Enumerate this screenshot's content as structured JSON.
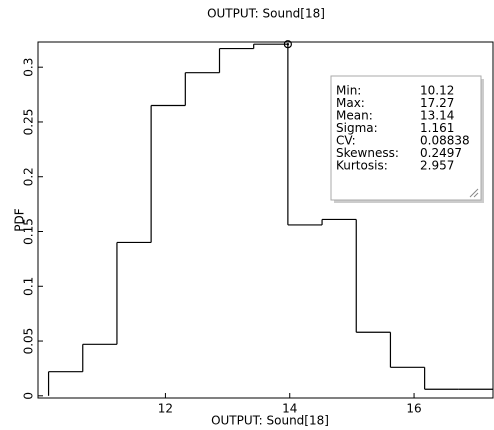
{
  "chart_data": {
    "type": "histogram",
    "title": "OUTPUT: Sound[18]",
    "x_label": "OUTPUT: Sound[18]",
    "y_label": "PDF",
    "bins": [
      10.12,
      10.67,
      11.22,
      11.77,
      12.32,
      12.87,
      13.42,
      13.97,
      14.52,
      15.07,
      15.62,
      16.17,
      16.72,
      17.27
    ],
    "values": [
      0.022,
      0.047,
      0.14,
      0.265,
      0.295,
      0.317,
      0.321,
      0.156,
      0.161,
      0.058,
      0.026,
      0.006,
      0.006
    ],
    "color": "#000000",
    "xlim": [
      9.95,
      17.27
    ],
    "ylim": [
      -0.002,
      0.323
    ],
    "xticks": [
      12,
      14,
      16
    ],
    "yticks": [
      0,
      0.05,
      0.1,
      0.15,
      0.2,
      0.25,
      0.3
    ],
    "highlight": {
      "x": 13.97,
      "y": 0.321
    },
    "stats": [
      {
        "label": "Min:",
        "value": 10.12
      },
      {
        "label": "Max:",
        "value": 17.27
      },
      {
        "label": "Mean:",
        "value": 13.14
      },
      {
        "label": "Sigma:",
        "value": 1.161
      },
      {
        "label": "CV:",
        "value": 0.08838
      },
      {
        "label": "Skewness:",
        "value": 0.2497
      },
      {
        "label": "Kurtosis:",
        "value": 2.957
      }
    ]
  }
}
